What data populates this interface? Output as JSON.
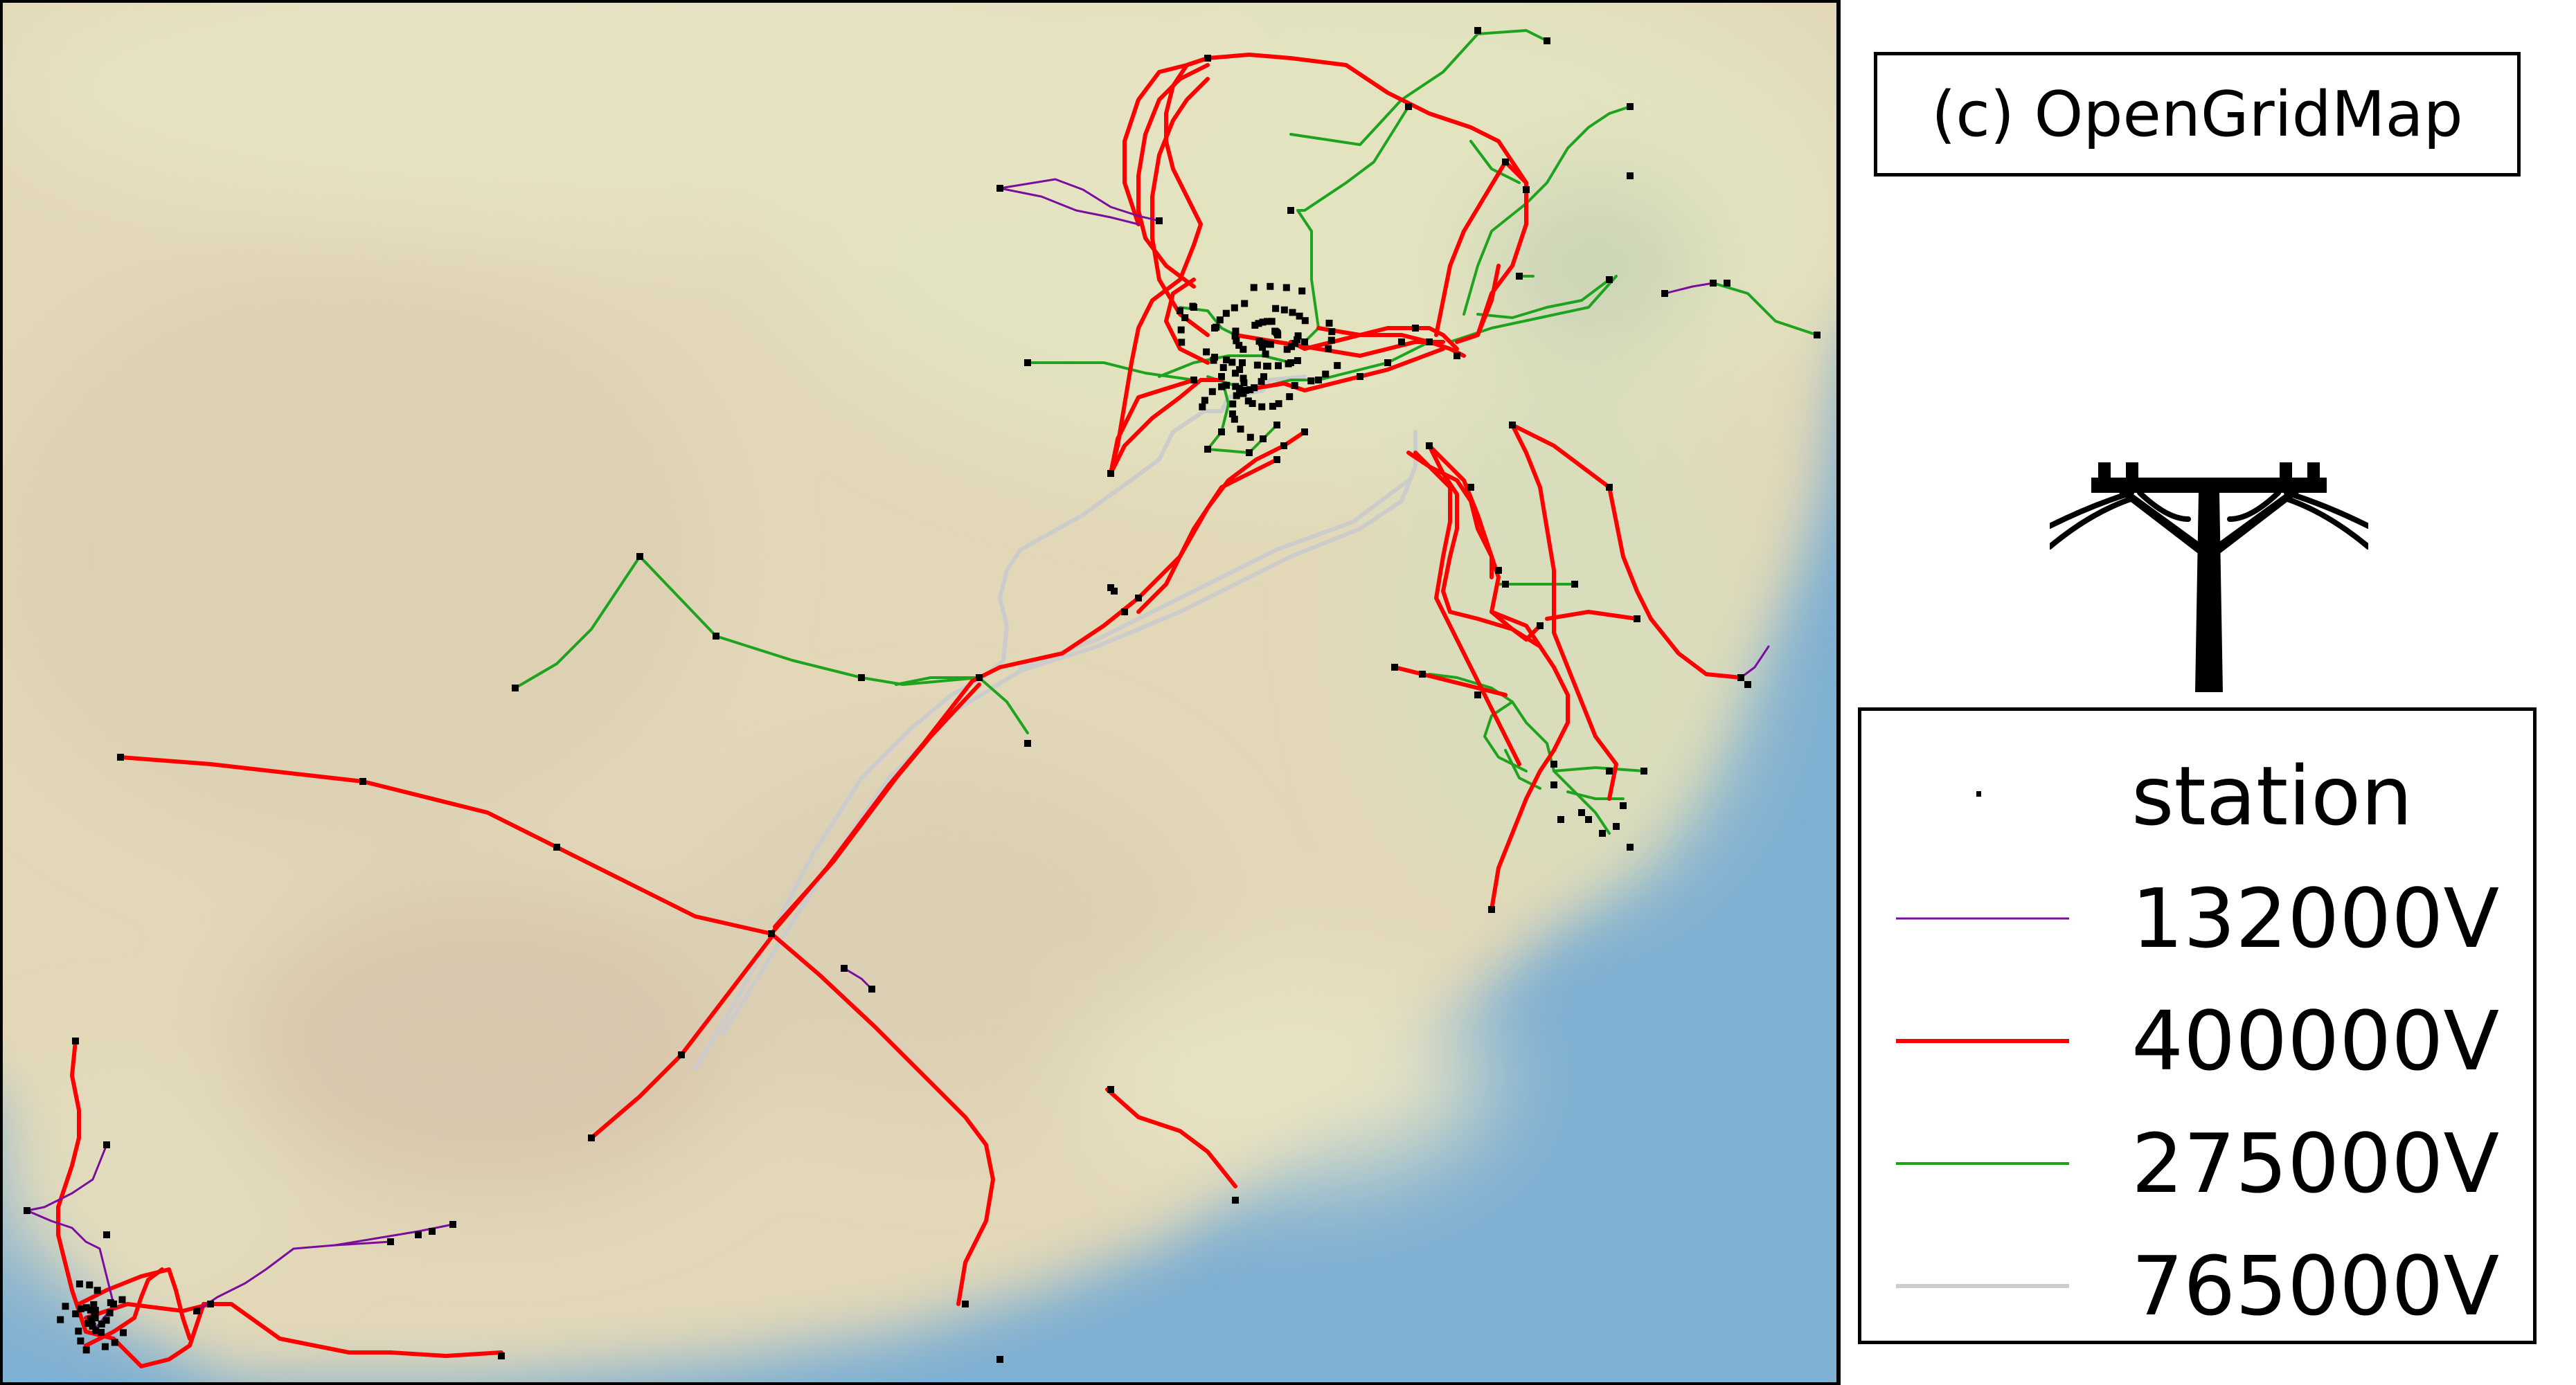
{
  "credit": "(c) OpenGridMap",
  "legend": {
    "items": [
      {
        "label": "station",
        "kind": "marker",
        "color": "#000000"
      },
      {
        "label": "132000V",
        "kind": "line",
        "color": "#7b0d9e"
      },
      {
        "label": "400000V",
        "kind": "line",
        "color": "#ff0000"
      },
      {
        "label": "275000V",
        "kind": "line",
        "color": "#1ea31e"
      },
      {
        "label": "765000V",
        "kind": "line",
        "color": "#cccccc"
      }
    ]
  },
  "colors": {
    "land": "#e5dcbd",
    "land_north": "#e6e4c2",
    "ocean": "#7aacce",
    "v132000": "#7b0d9e",
    "v400000": "#ff0000",
    "v275000": "#1ea31e",
    "v765000": "#cccccc",
    "station": "#000000"
  },
  "icons": {
    "pylon": "power-pylon-icon"
  }
}
